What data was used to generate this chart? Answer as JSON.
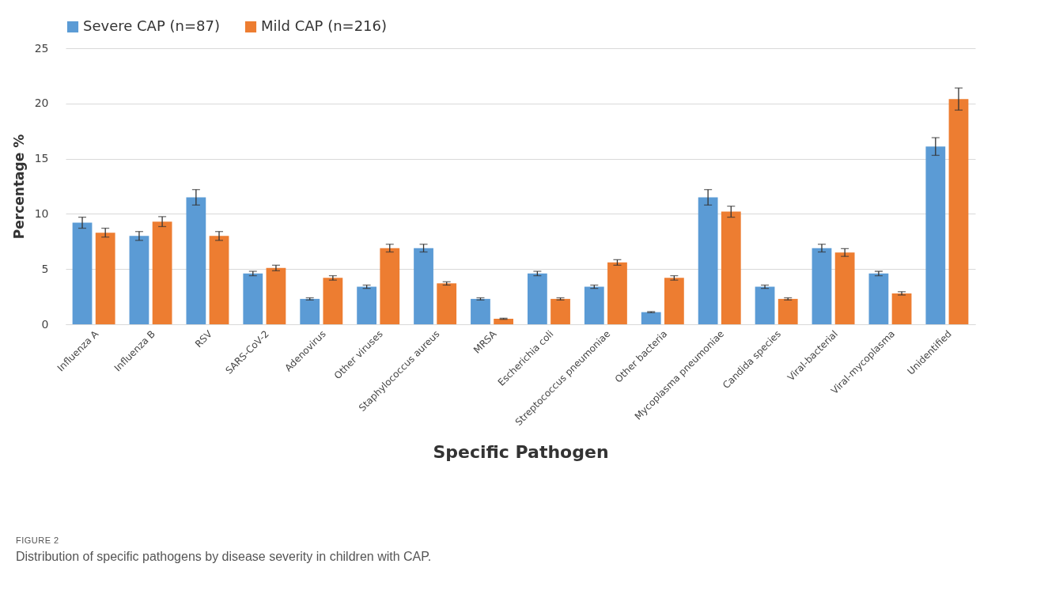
{
  "chart_data": {
    "type": "bar",
    "xlabel": "Specific  Pathogen",
    "ylabel": "Percentage  %",
    "categories": [
      "Influenza A",
      "Influenza B",
      "RSV",
      "SARS-CoV-2",
      "Adenovirus",
      "Other viruses",
      "Staphylococcus aureus",
      "MRSA",
      "Escherichia coli",
      "Streptococcus pneumoniae",
      "Other bacteria",
      "Mycoplasma pneumoniae",
      "Candida species",
      "Viral-bacterial",
      "Viral-mycoplasma",
      "Unidentified"
    ],
    "series": [
      {
        "name": "Severe CAP (n=87)",
        "color": "#5b9bd5",
        "values": [
          9.2,
          8.0,
          11.5,
          4.6,
          2.3,
          3.4,
          6.9,
          2.3,
          4.6,
          3.4,
          1.1,
          11.5,
          3.4,
          6.9,
          4.6,
          16.1
        ],
        "errors": [
          0.5,
          0.4,
          0.7,
          0.2,
          0.1,
          0.15,
          0.35,
          0.1,
          0.2,
          0.15,
          0.05,
          0.7,
          0.15,
          0.35,
          0.2,
          0.8
        ]
      },
      {
        "name": "Mild CAP (n=216)",
        "color": "#ed7d31",
        "values": [
          8.3,
          9.3,
          8.0,
          5.1,
          4.2,
          6.9,
          3.7,
          0.5,
          2.3,
          5.6,
          4.2,
          10.2,
          2.3,
          6.5,
          2.8,
          20.4
        ],
        "errors": [
          0.4,
          0.45,
          0.4,
          0.25,
          0.2,
          0.35,
          0.15,
          0.05,
          0.1,
          0.25,
          0.2,
          0.5,
          0.1,
          0.35,
          0.15,
          1.0
        ]
      }
    ],
    "ylim": [
      0,
      25
    ],
    "yticks": [
      0,
      5,
      10,
      15,
      20,
      25
    ],
    "grid": "y",
    "legend": "top",
    "annotations": [
      "FIGURE 2",
      "Distribution of specific pathogens by disease severity in children with CAP."
    ]
  }
}
